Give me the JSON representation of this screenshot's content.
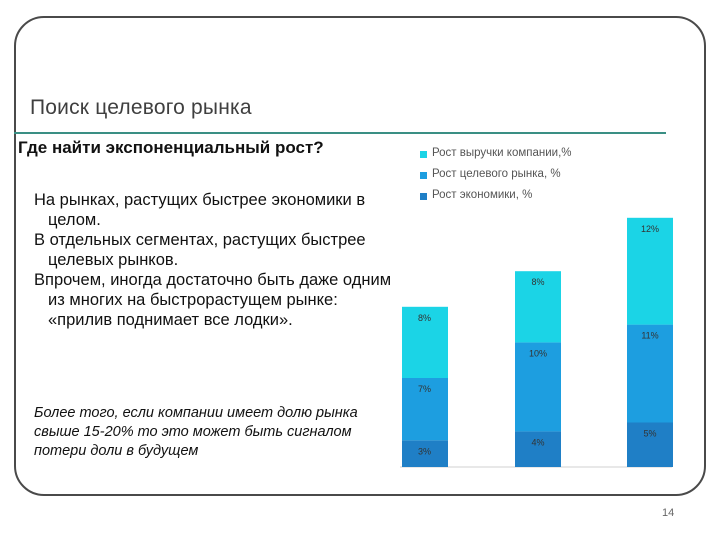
{
  "slide": {
    "title": "Поиск целевого рынка",
    "subtitle": "Где найти экспоненциальный рост?",
    "bullets": [
      "На рынках, растущих быстрее экономики в целом.",
      "В отдельных сегментах, растущих быстрее целевых рынков.",
      "Впрочем, иногда достаточно быть даже одним из многих на быстрорастущем рынке: «прилив поднимает все лодки»."
    ],
    "note": "Более того, если компании имеет долю рынка свыше 15-20% то это может быть сигналом потери доли в будущем",
    "page_number": "14"
  },
  "chart_data": {
    "type": "bar",
    "stacked": true,
    "categories": [
      "",
      "",
      ""
    ],
    "series": [
      {
        "name": "Рост экономики, %",
        "color": "#1f7fc6",
        "values": [
          3,
          4,
          5
        ],
        "labels": [
          "3%",
          "4%",
          "5%"
        ]
      },
      {
        "name": "Рост целевого рынка, %",
        "color": "#1d9ee0",
        "values": [
          7,
          10,
          11
        ],
        "labels": [
          "7%",
          "10%",
          "11%"
        ]
      },
      {
        "name": "Рост выручки компании,%",
        "color": "#1bd4e6",
        "values": [
          8,
          8,
          12
        ],
        "labels": [
          "8%",
          "8%",
          "12%"
        ]
      }
    ],
    "legend_order": [
      2,
      1,
      0
    ],
    "legend": "top",
    "ylim": [
      0,
      30
    ],
    "grid": false,
    "xlabel": "",
    "ylabel": ""
  }
}
